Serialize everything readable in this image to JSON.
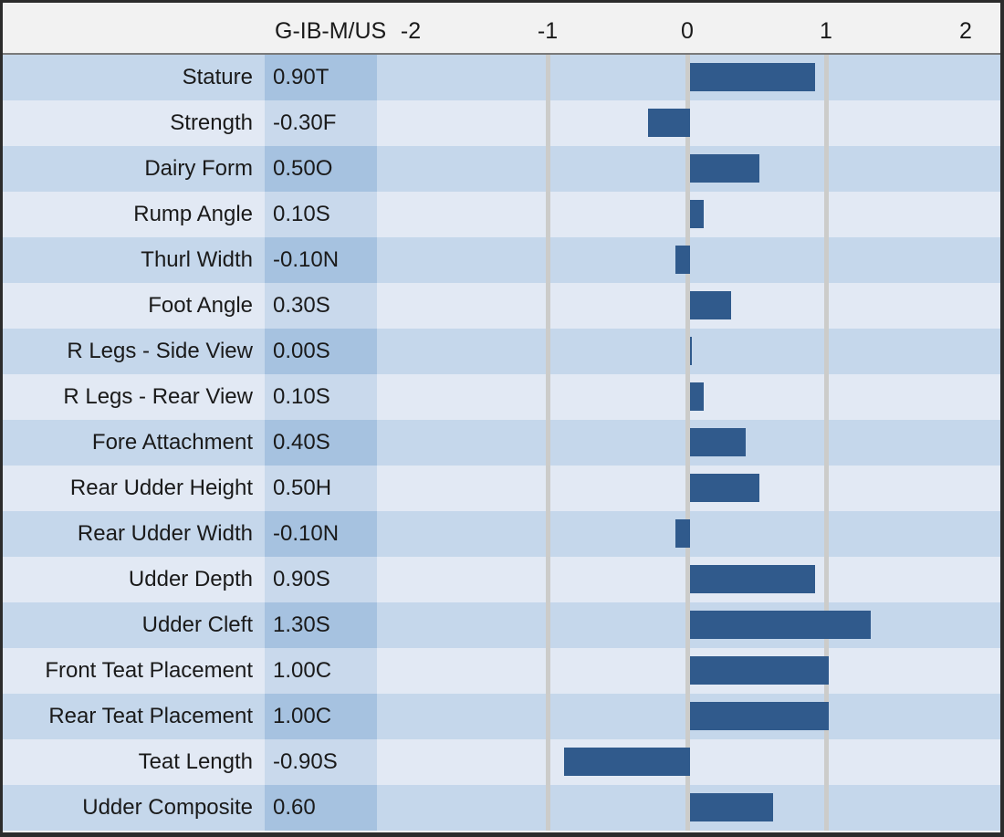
{
  "header": {
    "series_label": "G-IB-M/US"
  },
  "chart_data": {
    "type": "bar",
    "orientation": "horizontal",
    "title": "G-IB-M/US",
    "xlabel": "",
    "ylabel": "",
    "axis": {
      "min": -2,
      "max": 2,
      "tick_labels": [
        "-2",
        "-1",
        "0",
        "1",
        "2"
      ],
      "gridlines_at": [
        -1,
        0,
        1
      ],
      "grid": "vertical-major-only"
    },
    "legend_position": "none",
    "rows": [
      {
        "label": "Stature",
        "value": 0.9,
        "value_label": "0.90T"
      },
      {
        "label": "Strength",
        "value": -0.3,
        "value_label": "-0.30F"
      },
      {
        "label": "Dairy Form",
        "value": 0.5,
        "value_label": "0.50O"
      },
      {
        "label": "Rump Angle",
        "value": 0.1,
        "value_label": "0.10S"
      },
      {
        "label": "Thurl Width",
        "value": -0.1,
        "value_label": "-0.10N"
      },
      {
        "label": "Foot Angle",
        "value": 0.3,
        "value_label": "0.30S"
      },
      {
        "label": "R Legs - Side View",
        "value": 0.0,
        "value_label": "0.00S"
      },
      {
        "label": "R Legs - Rear View",
        "value": 0.1,
        "value_label": "0.10S"
      },
      {
        "label": "Fore Attachment",
        "value": 0.4,
        "value_label": "0.40S"
      },
      {
        "label": "Rear Udder Height",
        "value": 0.5,
        "value_label": "0.50H"
      },
      {
        "label": "Rear Udder Width",
        "value": -0.1,
        "value_label": "-0.10N"
      },
      {
        "label": "Udder Depth",
        "value": 0.9,
        "value_label": "0.90S"
      },
      {
        "label": "Udder Cleft",
        "value": 1.3,
        "value_label": "1.30S"
      },
      {
        "label": "Front Teat Placement",
        "value": 1.0,
        "value_label": "1.00C"
      },
      {
        "label": "Rear Teat Placement",
        "value": 1.0,
        "value_label": "1.00C"
      },
      {
        "label": "Teat Length",
        "value": -0.9,
        "value_label": "-0.90S"
      },
      {
        "label": "Udder Composite",
        "value": 0.6,
        "value_label": "0.60"
      }
    ]
  },
  "colors": {
    "bar": "#305a8c",
    "row_dark": "#c5d7eb",
    "row_light": "#e2e9f4",
    "value_cell_dark": "#a6c2e0",
    "value_cell_light": "#c9d9ec",
    "gridline": "#ccccca",
    "header_bg": "#f2f2f2",
    "outer_border": "#2c2c2c",
    "header_divider": "#7a7a7a",
    "text": "#1a1a1a"
  }
}
